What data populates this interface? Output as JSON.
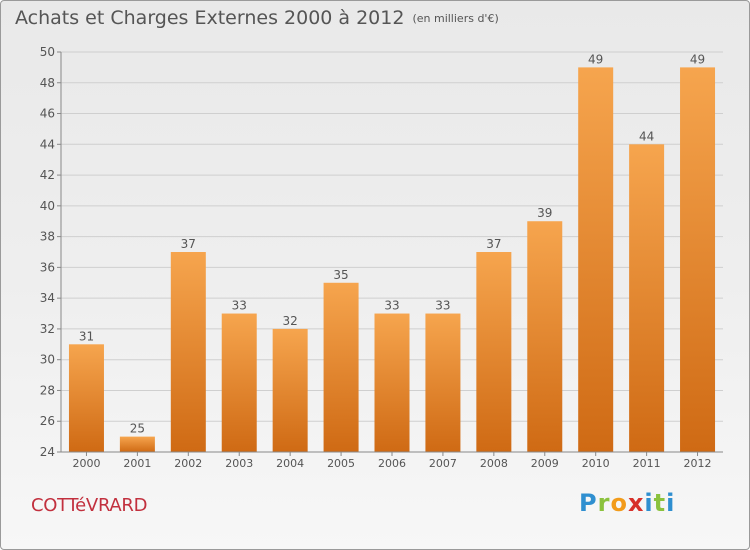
{
  "header": {
    "title": "Achats et Charges Externes 2000 à 2012",
    "unit_note": "(en milliers d'€)"
  },
  "footer": {
    "commune": "COTTéVRARD",
    "logo": {
      "p": "P",
      "r": "r",
      "o": "o",
      "x": "x",
      "i": "i",
      "t": "t",
      "i2": "i"
    }
  },
  "colors": {
    "bar_top": "#f6a54e",
    "bar_bottom": "#cf6a14",
    "axis": "#888888",
    "grid": "#cfcfcf",
    "text": "#555555",
    "commune": "#c2303e"
  },
  "chart_data": {
    "type": "bar",
    "title": "Achats et Charges Externes 2000 à 2012",
    "subtitle": "(en milliers d'€)",
    "categories": [
      "2000",
      "2001",
      "2002",
      "2003",
      "2004",
      "2005",
      "2006",
      "2007",
      "2008",
      "2009",
      "2010",
      "2011",
      "2012"
    ],
    "values": [
      31,
      25,
      37,
      33,
      32,
      35,
      33,
      33,
      37,
      39,
      49,
      44,
      49
    ],
    "data_labels": [
      "31",
      "25",
      "37",
      "33",
      "32",
      "35",
      "33",
      "33",
      "37",
      "39",
      "49",
      "44",
      "49"
    ],
    "ylim": [
      24,
      50
    ],
    "yticks": [
      24,
      26,
      28,
      30,
      32,
      34,
      36,
      38,
      40,
      42,
      44,
      46,
      48,
      50
    ],
    "xlabel": "",
    "ylabel": "",
    "grid": true,
    "legend": "none"
  }
}
